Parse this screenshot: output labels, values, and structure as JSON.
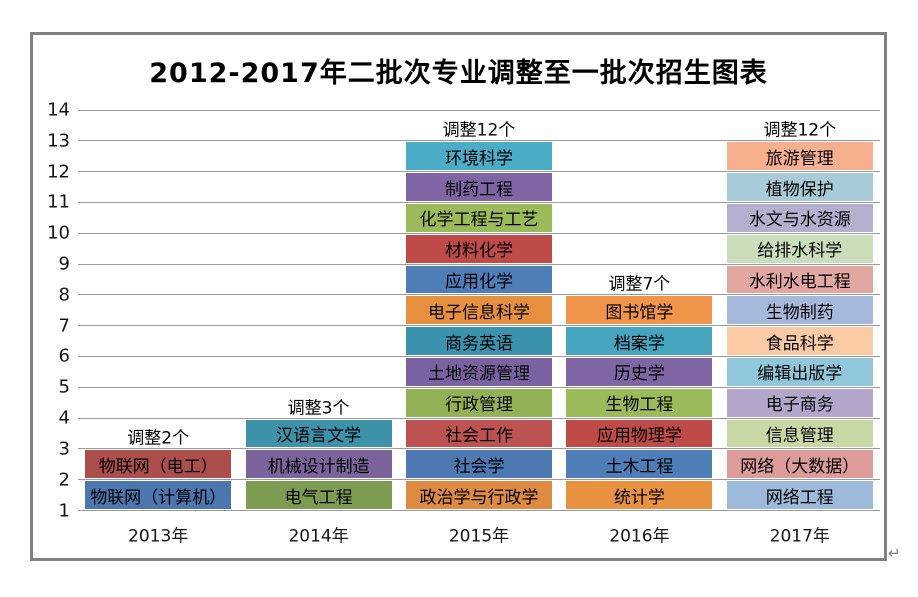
{
  "page": {
    "return_mark": "↵"
  },
  "colors": {
    "gridline": "#9a9a9a",
    "frame_border": "#808080",
    "text": "#000000"
  },
  "chart_data": {
    "type": "bar",
    "stacked": true,
    "title": "2012-2017年二批次专业调整至一批次招生图表",
    "xlabel": "",
    "ylabel": "",
    "ylim": [
      1,
      14
    ],
    "y_ticks": [
      1,
      2,
      3,
      4,
      5,
      6,
      7,
      8,
      9,
      10,
      11,
      12,
      13,
      14
    ],
    "grid": true,
    "legend_position": "none",
    "unit_per_block": 1,
    "categories": [
      "2013年",
      "2014年",
      "2015年",
      "2016年",
      "2017年"
    ],
    "columns": [
      {
        "category": "2013年",
        "annotation": "调整2个",
        "count": 2,
        "blocks_bottom_to_top": [
          {
            "label": "物联网（计算机）",
            "color": "#4b77ae"
          },
          {
            "label": "物联网（电工）",
            "color": "#ac4f4c"
          }
        ]
      },
      {
        "category": "2014年",
        "annotation": "调整3个",
        "count": 3,
        "blocks_bottom_to_top": [
          {
            "label": "电气工程",
            "color": "#7d9b51"
          },
          {
            "label": "机械设计制造",
            "color": "#7b649b"
          },
          {
            "label": "汉语言文学",
            "color": "#3c92a9"
          }
        ]
      },
      {
        "category": "2015年",
        "annotation": "调整12个",
        "count": 12,
        "blocks_bottom_to_top": [
          {
            "label": "政治学与行政学",
            "color": "#de8b41"
          },
          {
            "label": "社会学",
            "color": "#4d79b3"
          },
          {
            "label": "社会工作",
            "color": "#bc5350"
          },
          {
            "label": "行政管理",
            "color": "#93b255"
          },
          {
            "label": "土地资源管理",
            "color": "#7a62a2"
          },
          {
            "label": "商务英语",
            "color": "#3a92ac"
          },
          {
            "label": "电子信息科学",
            "color": "#e68f3e"
          },
          {
            "label": "应用化学",
            "color": "#4e7db7"
          },
          {
            "label": "材料化学",
            "color": "#be4b48"
          },
          {
            "label": "化学工程与工艺",
            "color": "#9bba59"
          },
          {
            "label": "制药工程",
            "color": "#7f65a4"
          },
          {
            "label": "环境科学",
            "color": "#4aacc6"
          }
        ]
      },
      {
        "category": "2016年",
        "annotation": "调整7个",
        "count": 7,
        "blocks_bottom_to_top": [
          {
            "label": "统计学",
            "color": "#e8913e"
          },
          {
            "label": "土木工程",
            "color": "#4e7db7"
          },
          {
            "label": "应用物理学",
            "color": "#be4b48"
          },
          {
            "label": "生物工程",
            "color": "#9bba59"
          },
          {
            "label": "历史学",
            "color": "#7f65a4"
          },
          {
            "label": "档案学",
            "color": "#45a5bf"
          },
          {
            "label": "图书馆学",
            "color": "#f0944a"
          }
        ]
      },
      {
        "category": "2017年",
        "annotation": "调整12个",
        "count": 12,
        "blocks_bottom_to_top": [
          {
            "label": "网络工程",
            "color": "#9db9dc"
          },
          {
            "label": "网络（大数据）",
            "color": "#dc9c99"
          },
          {
            "label": "信息管理",
            "color": "#c8d8a4"
          },
          {
            "label": "电子商务",
            "color": "#b3a6ca"
          },
          {
            "label": "编辑出版学",
            "color": "#90c7da"
          },
          {
            "label": "食品科学",
            "color": "#fbcba6"
          },
          {
            "label": "生物制药",
            "color": "#a6b8db"
          },
          {
            "label": "水利水电工程",
            "color": "#e3a7a2"
          },
          {
            "label": "给排水科学",
            "color": "#cadebc"
          },
          {
            "label": "水文与水资源",
            "color": "#b6aece"
          },
          {
            "label": "植物保护",
            "color": "#a7ccd8"
          },
          {
            "label": "旅游管理",
            "color": "#f7b08d"
          }
        ]
      }
    ]
  }
}
